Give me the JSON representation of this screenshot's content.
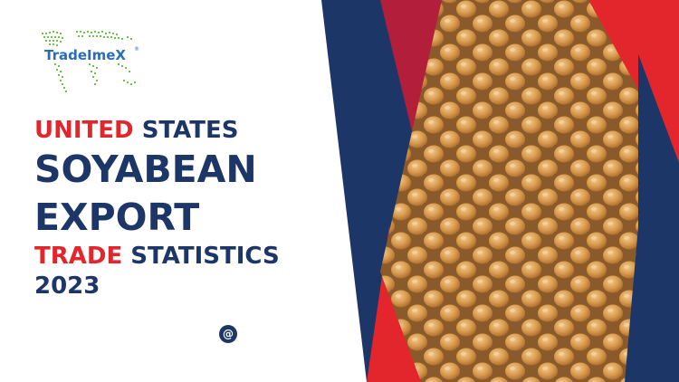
{
  "logo": {
    "name": "TradeImeX",
    "registered_mark": "®"
  },
  "headline": {
    "line1_accent": "UNITED",
    "line1_rest": "STATES",
    "line2": "SOYABEAN",
    "line3": "EXPORT",
    "line4_accent": "TRADE",
    "line4_rest": "STATISTICS",
    "line5": "2023"
  },
  "contact": {
    "symbol": "@"
  },
  "colors": {
    "red": "#e3262c",
    "navy": "#1c3668",
    "logo_blue": "#2b6db5",
    "logo_green": "#6cc24a",
    "soybean": "#d99a4e"
  }
}
